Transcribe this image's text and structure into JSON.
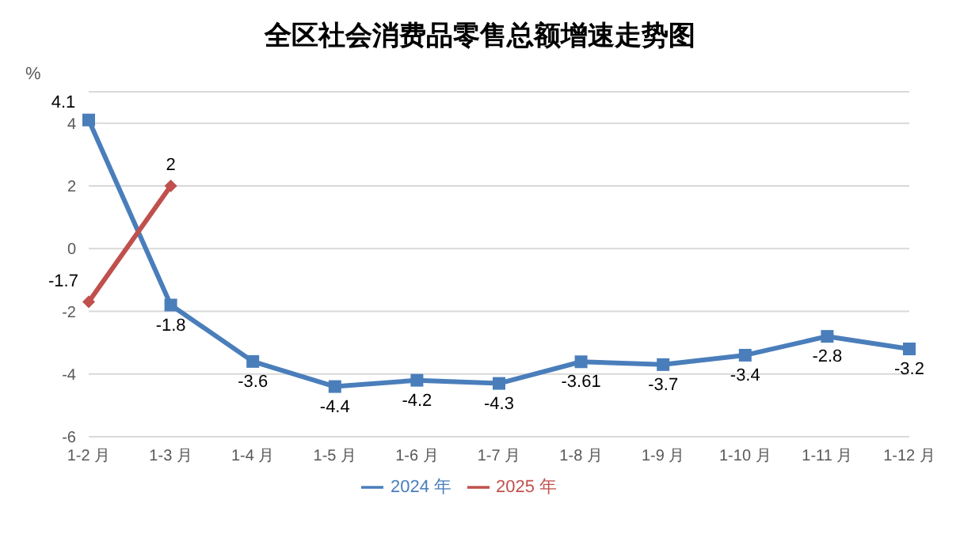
{
  "chart_data": {
    "type": "line",
    "title": "全区社会消费品零售总额增速走势图",
    "ylabel": "%",
    "categories": [
      "1-2 月",
      "1-3 月",
      "1-4 月",
      "1-5 月",
      "1-6 月",
      "1-7 月",
      "1-8 月",
      "1-9 月",
      "1-10 月",
      "1-11 月",
      "1-12 月"
    ],
    "series": [
      {
        "name": "2024 年",
        "color": "#4a7ebb",
        "marker": "square",
        "values": [
          4.1,
          -1.8,
          -3.6,
          -4.4,
          -4.2,
          -4.3,
          -3.61,
          -3.7,
          -3.4,
          -2.8,
          -3.2
        ]
      },
      {
        "name": "2025 年",
        "color": "#c0504d",
        "marker": "diamond",
        "values": [
          -1.7,
          2,
          null,
          null,
          null,
          null,
          null,
          null,
          null,
          null,
          null
        ]
      }
    ],
    "ylim": [
      -6,
      5
    ],
    "yticks": [
      -6,
      -4,
      -2,
      0,
      2,
      4
    ],
    "grid": "y",
    "legend": "bottom",
    "data_labels": true,
    "line_style": "solid"
  }
}
